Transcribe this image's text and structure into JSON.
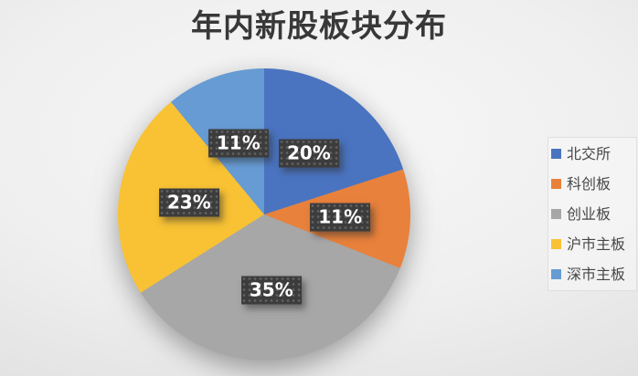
{
  "title": "年内新股板块分布",
  "chart_data": {
    "type": "pie",
    "title": "年内新股板块分布",
    "categories": [
      "北交所",
      "科创板",
      "创业板",
      "沪市主板",
      "深市主板"
    ],
    "values": [
      20,
      11,
      35,
      23,
      11
    ],
    "labels": [
      "20%",
      "11%",
      "35%",
      "23%",
      "11%"
    ],
    "colors": [
      "#4a74c0",
      "#e8813c",
      "#a7a7a7",
      "#f8c234",
      "#669bd3"
    ],
    "start_angle_deg": 0,
    "direction": "clockwise",
    "legend_position": "right",
    "label_background": "#3c3c3c",
    "label_text_color": "#ffffff"
  }
}
